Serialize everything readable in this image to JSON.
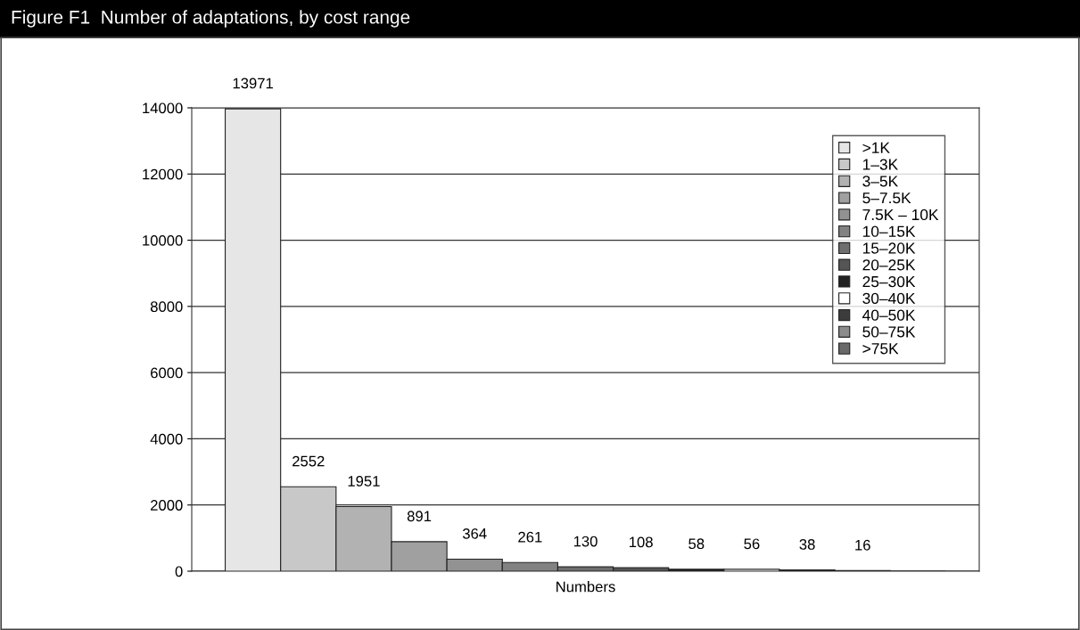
{
  "chart_data": {
    "type": "bar",
    "title": "Figure F1  Number of adaptations, by cost range",
    "categories": [
      "Numbers"
    ],
    "series": [
      {
        "name": ">1K",
        "color": "#e6e6e6",
        "values": [
          13971
        ]
      },
      {
        "name": "1–3K",
        "color": "#c8c8c8",
        "values": [
          2552
        ]
      },
      {
        "name": "3–5K",
        "color": "#b2b2b2",
        "values": [
          1951
        ]
      },
      {
        "name": "5–7.5K",
        "color": "#a0a0a0",
        "values": [
          891
        ]
      },
      {
        "name": "7.5K – 10K",
        "color": "#929292",
        "values": [
          364
        ]
      },
      {
        "name": "10–15K",
        "color": "#828282",
        "values": [
          261
        ]
      },
      {
        "name": "15–20K",
        "color": "#6e6e6e",
        "values": [
          130
        ]
      },
      {
        "name": "20–25K",
        "color": "#555555",
        "values": [
          108
        ]
      },
      {
        "name": "25–30K",
        "color": "#222222",
        "values": [
          58
        ]
      },
      {
        "name": "30–40K",
        "color": "#ffffff",
        "values": [
          56
        ]
      },
      {
        "name": "40–50K",
        "color": "#3c3c3c",
        "values": [
          38
        ]
      },
      {
        "name": "50–75K",
        "color": "#8c8c8c",
        "values": [
          16
        ]
      },
      {
        "name": ">75K",
        "color": "#6a6a6a",
        "values": [
          null
        ]
      }
    ],
    "ylim": [
      0,
      14000
    ],
    "yticks": [
      0,
      2000,
      4000,
      6000,
      8000,
      10000,
      12000,
      14000
    ],
    "grid": "y",
    "legend": "top right",
    "data_labels": true
  }
}
